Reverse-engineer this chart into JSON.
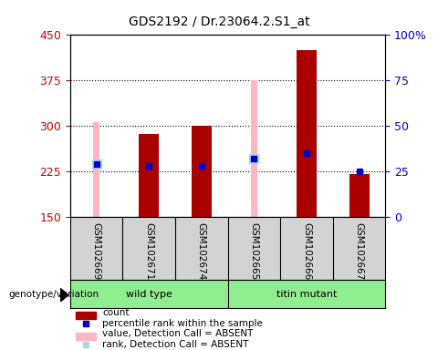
{
  "title": "GDS2192 / Dr.23064.2.S1_at",
  "samples": [
    "GSM102669",
    "GSM102671",
    "GSM102674",
    "GSM102665",
    "GSM102666",
    "GSM102667"
  ],
  "count_top": [
    150,
    287,
    300,
    150,
    425,
    220
  ],
  "pink_bar_top": [
    307,
    150,
    150,
    375,
    150,
    150
  ],
  "light_blue_y": [
    237,
    150,
    150,
    247,
    150,
    150
  ],
  "blue_square_y": [
    237,
    235,
    235,
    247,
    255,
    225
  ],
  "red_bar_bottom": 150,
  "ylim": [
    150,
    450
  ],
  "y2lim": [
    0,
    100
  ],
  "yticks": [
    150,
    225,
    300,
    375,
    450
  ],
  "y2ticks": [
    0,
    25,
    50,
    75,
    100
  ],
  "bg_color": "#d3d3d3",
  "plot_bg": "#ffffff",
  "red_color": "#aa0000",
  "pink_color": "#ffb6c1",
  "blue_color": "#0000cc",
  "light_blue_color": "#add8e6",
  "green_color": "#90EE90"
}
